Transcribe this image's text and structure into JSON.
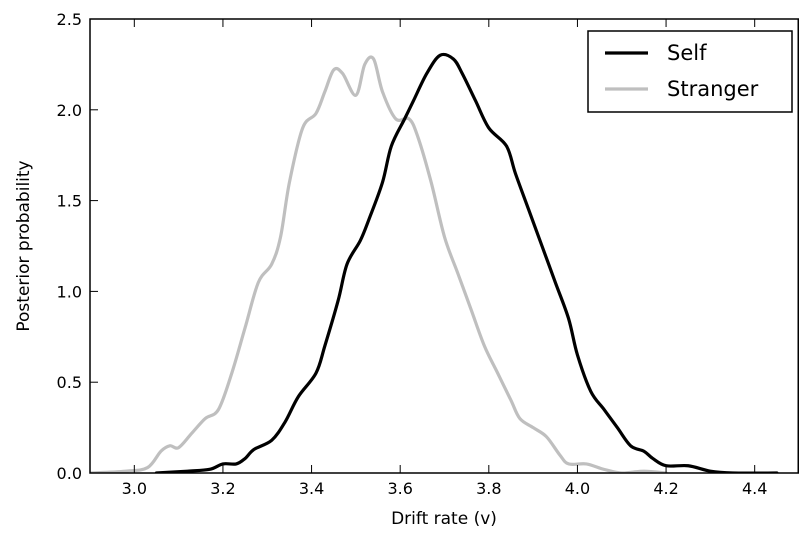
{
  "chart_data": {
    "type": "line",
    "title": "",
    "xlabel": "Drift rate (v)",
    "ylabel": "Posterior probability",
    "xlim": [
      2.9,
      4.5
    ],
    "ylim": [
      0,
      2.5
    ],
    "xticks": [
      3.0,
      3.2,
      3.4,
      3.6,
      3.8,
      4.0,
      4.2,
      4.4
    ],
    "xtick_labels": [
      "3.0",
      "3.2",
      "3.4",
      "3.6",
      "3.8",
      "4.0",
      "4.2",
      "4.4"
    ],
    "yticks": [
      0,
      0.5,
      1.0,
      1.5,
      2.0,
      2.5
    ],
    "ytick_labels": [
      "0.0",
      "0.5",
      "1.0",
      "1.5",
      "2.0",
      "2.5"
    ],
    "grid": false,
    "legend": "top-right",
    "series": [
      {
        "name": "Self",
        "color": "#000000",
        "points": [
          [
            3.05,
            0.0
          ],
          [
            3.12,
            0.01
          ],
          [
            3.17,
            0.02
          ],
          [
            3.2,
            0.05
          ],
          [
            3.23,
            0.05
          ],
          [
            3.25,
            0.08
          ],
          [
            3.27,
            0.13
          ],
          [
            3.31,
            0.18
          ],
          [
            3.34,
            0.28
          ],
          [
            3.37,
            0.42
          ],
          [
            3.41,
            0.55
          ],
          [
            3.43,
            0.7
          ],
          [
            3.46,
            0.95
          ],
          [
            3.48,
            1.15
          ],
          [
            3.51,
            1.28
          ],
          [
            3.53,
            1.4
          ],
          [
            3.56,
            1.6
          ],
          [
            3.58,
            1.8
          ],
          [
            3.61,
            1.95
          ],
          [
            3.63,
            2.05
          ],
          [
            3.66,
            2.2
          ],
          [
            3.69,
            2.3
          ],
          [
            3.72,
            2.28
          ],
          [
            3.74,
            2.2
          ],
          [
            3.77,
            2.05
          ],
          [
            3.8,
            1.9
          ],
          [
            3.84,
            1.8
          ],
          [
            3.86,
            1.65
          ],
          [
            3.89,
            1.45
          ],
          [
            3.92,
            1.25
          ],
          [
            3.95,
            1.05
          ],
          [
            3.98,
            0.85
          ],
          [
            4.0,
            0.65
          ],
          [
            4.03,
            0.45
          ],
          [
            4.06,
            0.35
          ],
          [
            4.09,
            0.25
          ],
          [
            4.12,
            0.15
          ],
          [
            4.15,
            0.12
          ],
          [
            4.17,
            0.08
          ],
          [
            4.2,
            0.04
          ],
          [
            4.25,
            0.04
          ],
          [
            4.3,
            0.01
          ],
          [
            4.35,
            0.0
          ],
          [
            4.45,
            0.0
          ]
        ]
      },
      {
        "name": "Stranger",
        "color": "#bfbfbf",
        "points": [
          [
            2.9,
            0.0
          ],
          [
            2.98,
            0.01
          ],
          [
            3.03,
            0.03
          ],
          [
            3.06,
            0.12
          ],
          [
            3.08,
            0.15
          ],
          [
            3.1,
            0.14
          ],
          [
            3.13,
            0.22
          ],
          [
            3.16,
            0.3
          ],
          [
            3.19,
            0.35
          ],
          [
            3.22,
            0.55
          ],
          [
            3.25,
            0.8
          ],
          [
            3.28,
            1.05
          ],
          [
            3.31,
            1.15
          ],
          [
            3.33,
            1.3
          ],
          [
            3.35,
            1.6
          ],
          [
            3.38,
            1.9
          ],
          [
            3.41,
            1.98
          ],
          [
            3.43,
            2.1
          ],
          [
            3.45,
            2.22
          ],
          [
            3.47,
            2.2
          ],
          [
            3.5,
            2.08
          ],
          [
            3.52,
            2.25
          ],
          [
            3.54,
            2.28
          ],
          [
            3.56,
            2.1
          ],
          [
            3.59,
            1.95
          ],
          [
            3.62,
            1.95
          ],
          [
            3.64,
            1.85
          ],
          [
            3.67,
            1.6
          ],
          [
            3.7,
            1.3
          ],
          [
            3.73,
            1.1
          ],
          [
            3.76,
            0.9
          ],
          [
            3.79,
            0.7
          ],
          [
            3.82,
            0.55
          ],
          [
            3.85,
            0.4
          ],
          [
            3.87,
            0.3
          ],
          [
            3.9,
            0.25
          ],
          [
            3.93,
            0.2
          ],
          [
            3.96,
            0.1
          ],
          [
            3.98,
            0.05
          ],
          [
            4.02,
            0.05
          ],
          [
            4.06,
            0.02
          ],
          [
            4.1,
            0.0
          ],
          [
            4.15,
            0.01
          ],
          [
            4.2,
            0.0
          ]
        ]
      }
    ]
  }
}
